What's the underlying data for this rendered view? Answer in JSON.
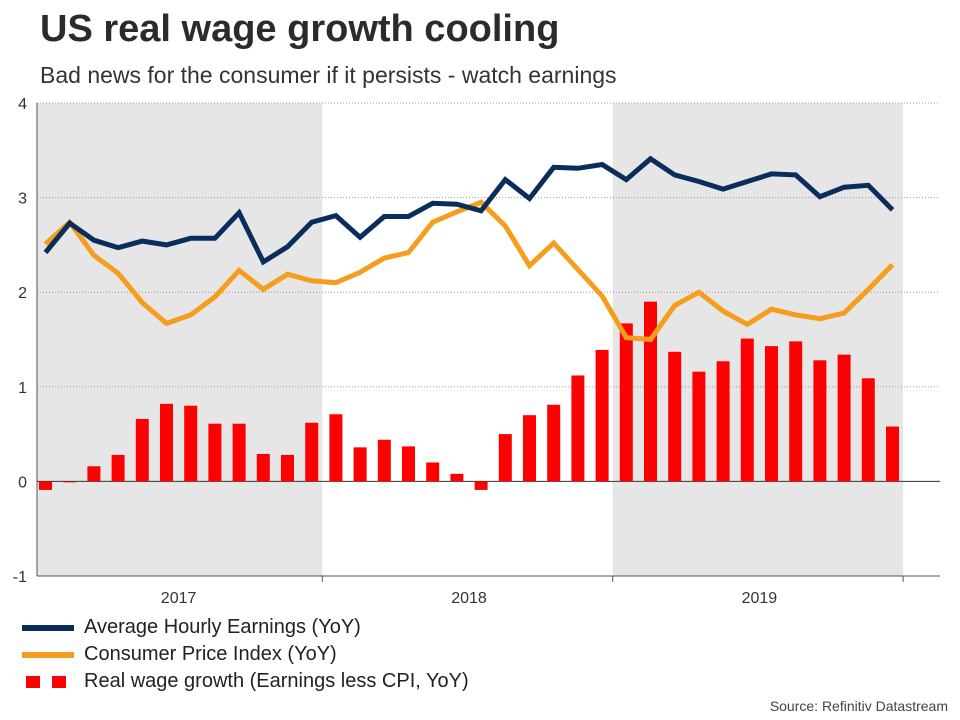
{
  "title": "US real wage growth cooling",
  "subtitle": "Bad news for the consumer if it persists - watch earnings",
  "source": "Source: Refinitiv Datastream",
  "colors": {
    "earnings": "#0b2d5b",
    "cpi": "#f59d1d",
    "real": "#ff0000",
    "shade": "#e6e6e6"
  },
  "chart_data": {
    "type": "bar+line",
    "title": "US real wage growth cooling",
    "ylim": [
      -1,
      4
    ],
    "yticks": [
      -1,
      0,
      1,
      2,
      3,
      4
    ],
    "xlabel": "",
    "ylabel": "",
    "years": [
      "2017",
      "2018",
      "2019"
    ],
    "shaded_years": [
      "2017",
      "2019"
    ],
    "grid": "horizontal dotted",
    "series": [
      {
        "name": "Average Hourly Earnings (YoY)",
        "type": "line",
        "values": [
          2.42,
          2.73,
          2.55,
          2.47,
          2.54,
          2.5,
          2.57,
          2.57,
          2.84,
          2.32,
          2.48,
          2.74,
          2.81,
          2.58,
          2.8,
          2.8,
          2.94,
          2.93,
          2.86,
          3.19,
          2.99,
          3.32,
          3.31,
          3.35,
          3.19,
          3.41,
          3.24,
          3.17,
          3.09,
          3.17,
          3.25,
          3.24,
          3.01,
          3.11,
          3.13,
          2.87
        ]
      },
      {
        "name": "Consumer Price Index (YoY)",
        "type": "line",
        "values": [
          2.51,
          2.74,
          2.39,
          2.2,
          1.89,
          1.67,
          1.76,
          1.95,
          2.23,
          2.03,
          2.19,
          2.12,
          2.1,
          2.21,
          2.36,
          2.42,
          2.74,
          2.85,
          2.95,
          2.7,
          2.28,
          2.52,
          2.24,
          1.96,
          1.52,
          1.5,
          1.86,
          2.0,
          1.8,
          1.66,
          1.82,
          1.76,
          1.72,
          1.78,
          2.03,
          2.29
        ]
      },
      {
        "name": "Real wage growth (Earnings less CPI, YoY)",
        "type": "bar",
        "values": [
          -0.09,
          -0.01,
          0.16,
          0.28,
          0.66,
          0.82,
          0.8,
          0.61,
          0.61,
          0.29,
          0.28,
          0.62,
          0.71,
          0.36,
          0.44,
          0.37,
          0.2,
          0.08,
          -0.09,
          0.5,
          0.7,
          0.81,
          1.12,
          1.39,
          1.67,
          1.9,
          1.37,
          1.16,
          1.27,
          1.51,
          1.43,
          1.48,
          1.28,
          1.34,
          1.09,
          0.58
        ]
      }
    ],
    "legend": [
      {
        "label": "Average Hourly Earnings (YoY)",
        "kind": "line",
        "series": 0
      },
      {
        "label": "Consumer Price Index (YoY)",
        "kind": "line",
        "series": 1
      },
      {
        "label": "Real wage growth (Earnings less CPI, YoY)",
        "kind": "bar",
        "series": 2
      }
    ]
  }
}
